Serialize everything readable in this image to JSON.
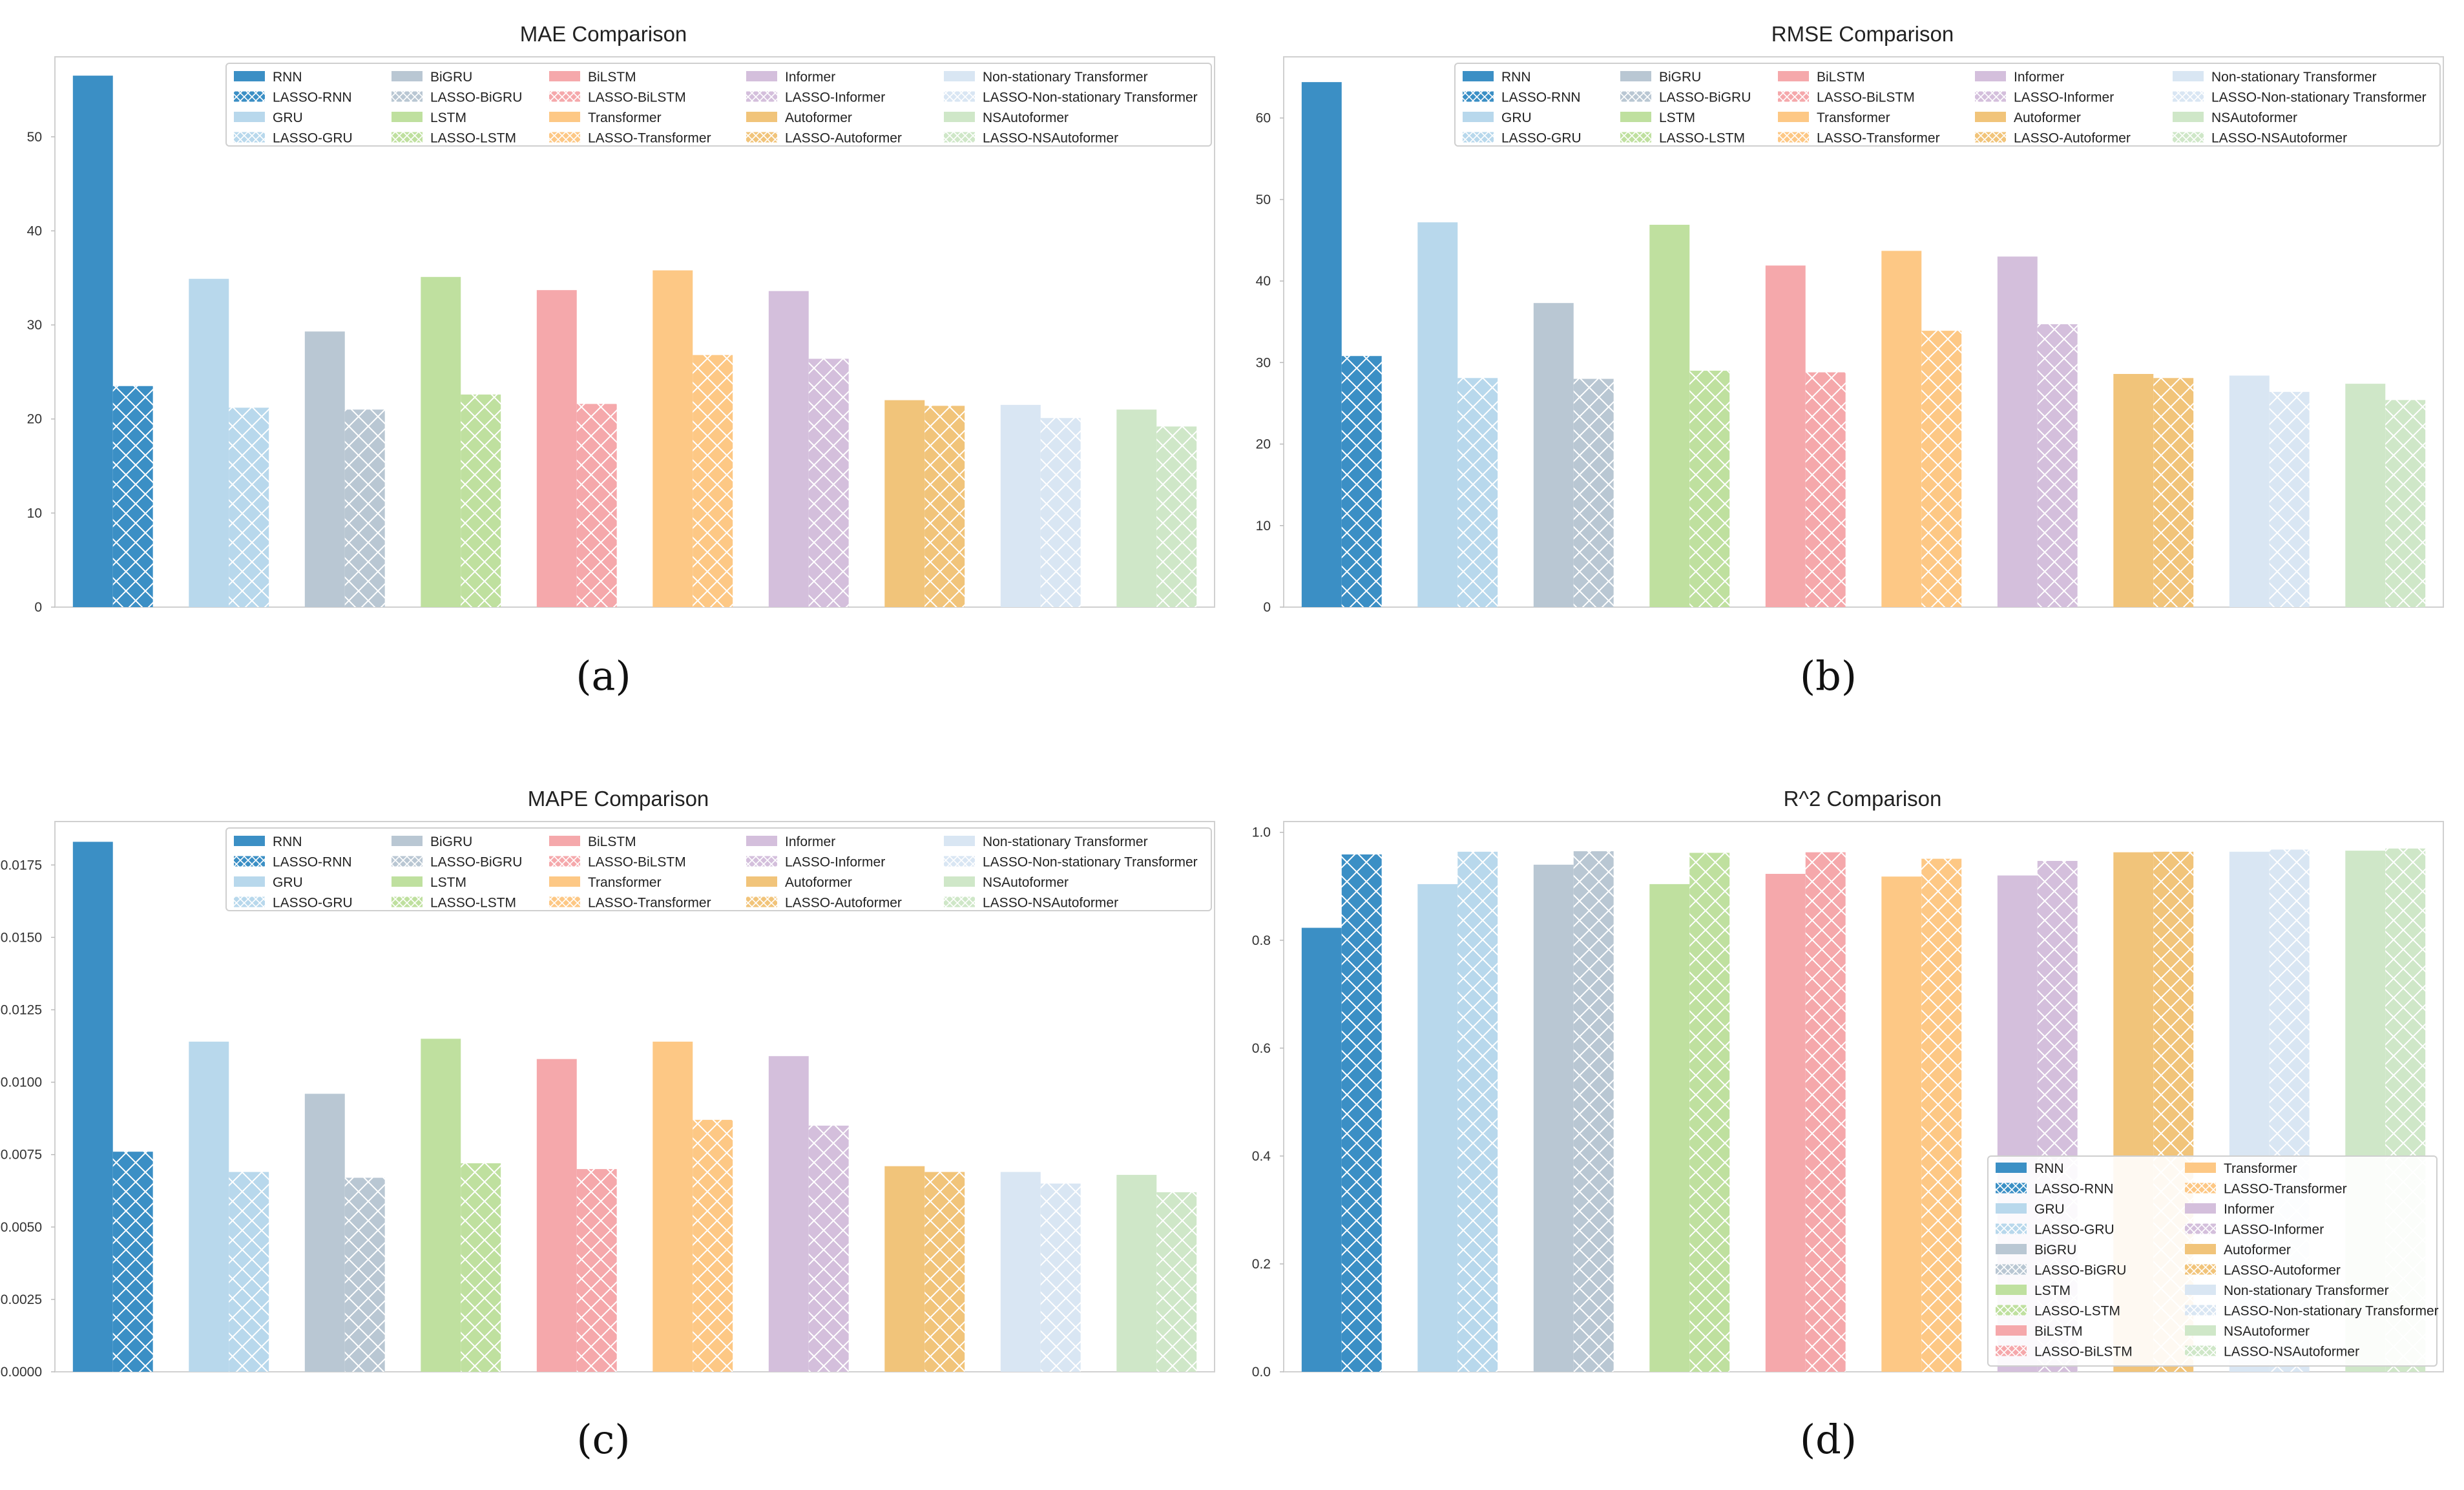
{
  "figure": {
    "captions": [
      "(a)",
      "(b)",
      "(c)",
      "(d)"
    ]
  },
  "models": [
    {
      "name": "RNN",
      "color": "#3b8fc5"
    },
    {
      "name": "GRU",
      "color": "#b8d8ec"
    },
    {
      "name": "BiGRU",
      "color": "#b9c7d3"
    },
    {
      "name": "LSTM",
      "color": "#bfe09f"
    },
    {
      "name": "BiLSTM",
      "color": "#f5a8ab"
    },
    {
      "name": "Transformer",
      "color": "#fdc885"
    },
    {
      "name": "Informer",
      "color": "#d4bfdc"
    },
    {
      "name": "Autoformer",
      "color": "#f1c47a"
    },
    {
      "name": "Non-stationary Transformer",
      "color": "#d9e6f3"
    },
    {
      "name": "NSAutoformer",
      "color": "#cfe7c8"
    }
  ],
  "lasso_prefix": "LASSO-",
  "chart_data": [
    {
      "type": "bar",
      "title": "MAE Comparison",
      "xlabel": "",
      "ylabel": "",
      "ylim": [
        0,
        58.5
      ],
      "yticks": [
        0,
        10,
        20,
        30,
        40,
        50
      ],
      "ytick_labels": [
        "0",
        "10",
        "20",
        "30",
        "40",
        "50"
      ],
      "grid": false,
      "legend_position": "top",
      "legend_order": "model-pairs",
      "categories": [
        "RNN",
        "GRU",
        "BiGRU",
        "LSTM",
        "BiLSTM",
        "Transformer",
        "Informer",
        "Autoformer",
        "Non-stationary Transformer",
        "NSAutoformer"
      ],
      "series": [
        {
          "name": "Base model",
          "values": [
            56.5,
            34.9,
            29.3,
            35.1,
            33.7,
            35.8,
            33.6,
            22.0,
            21.5,
            21.0
          ]
        },
        {
          "name": "LASSO model",
          "values": [
            23.5,
            21.2,
            21.0,
            22.6,
            21.6,
            26.8,
            26.4,
            21.4,
            20.1,
            19.2
          ]
        }
      ]
    },
    {
      "type": "bar",
      "title": "RMSE Comparison",
      "xlabel": "",
      "ylabel": "",
      "ylim": [
        0,
        67.5
      ],
      "yticks": [
        0,
        10,
        20,
        30,
        40,
        50,
        60
      ],
      "ytick_labels": [
        "0",
        "10",
        "20",
        "30",
        "40",
        "50",
        "60"
      ],
      "grid": false,
      "legend_position": "top",
      "legend_order": "model-pairs",
      "categories": [
        "RNN",
        "GRU",
        "BiGRU",
        "LSTM",
        "BiLSTM",
        "Transformer",
        "Informer",
        "Autoformer",
        "Non-stationary Transformer",
        "NSAutoformer"
      ],
      "series": [
        {
          "name": "Base model",
          "values": [
            64.4,
            47.2,
            37.3,
            46.9,
            41.9,
            43.7,
            43.0,
            28.6,
            28.4,
            27.4
          ]
        },
        {
          "name": "LASSO model",
          "values": [
            30.8,
            28.1,
            28.0,
            29.0,
            28.8,
            33.9,
            34.7,
            28.1,
            26.4,
            25.4
          ]
        }
      ]
    },
    {
      "type": "bar",
      "title": "MAPE Comparison",
      "xlabel": "",
      "ylabel": "",
      "ylim": [
        0,
        0.019
      ],
      "yticks": [
        0,
        0.0025,
        0.005,
        0.0075,
        0.01,
        0.0125,
        0.015,
        0.0175
      ],
      "ytick_labels": [
        "0.0000",
        "0.0025",
        "0.0050",
        "0.0075",
        "0.0100",
        "0.0125",
        "0.0150",
        "0.0175"
      ],
      "grid": false,
      "legend_position": "top",
      "legend_order": "model-pairs",
      "categories": [
        "RNN",
        "GRU",
        "BiGRU",
        "LSTM",
        "BiLSTM",
        "Transformer",
        "Informer",
        "Autoformer",
        "Non-stationary Transformer",
        "NSAutoformer"
      ],
      "series": [
        {
          "name": "Base model",
          "values": [
            0.0183,
            0.0114,
            0.0096,
            0.0115,
            0.0108,
            0.0114,
            0.0109,
            0.0071,
            0.0069,
            0.0068
          ]
        },
        {
          "name": "LASSO model",
          "values": [
            0.0076,
            0.0069,
            0.0067,
            0.0072,
            0.007,
            0.0087,
            0.0085,
            0.0069,
            0.0065,
            0.0062
          ]
        }
      ]
    },
    {
      "type": "bar",
      "title": "R^2 Comparison",
      "xlabel": "",
      "ylabel": "",
      "ylim": [
        0,
        1.02
      ],
      "yticks": [
        0,
        0.2,
        0.4,
        0.6,
        0.8,
        1.0
      ],
      "ytick_labels": [
        "0.0",
        "0.2",
        "0.4",
        "0.6",
        "0.8",
        "1.0"
      ],
      "grid": false,
      "legend_position": "lower-right",
      "legend_order": "model-pairs",
      "categories": [
        "RNN",
        "GRU",
        "BiGRU",
        "LSTM",
        "BiLSTM",
        "Transformer",
        "Informer",
        "Autoformer",
        "Non-stationary Transformer",
        "NSAutoformer"
      ],
      "series": [
        {
          "name": "Base model",
          "values": [
            0.823,
            0.904,
            0.94,
            0.904,
            0.923,
            0.918,
            0.92,
            0.963,
            0.964,
            0.966
          ]
        },
        {
          "name": "LASSO model",
          "values": [
            0.959,
            0.964,
            0.965,
            0.962,
            0.963,
            0.951,
            0.947,
            0.964,
            0.968,
            0.97
          ]
        }
      ]
    }
  ]
}
